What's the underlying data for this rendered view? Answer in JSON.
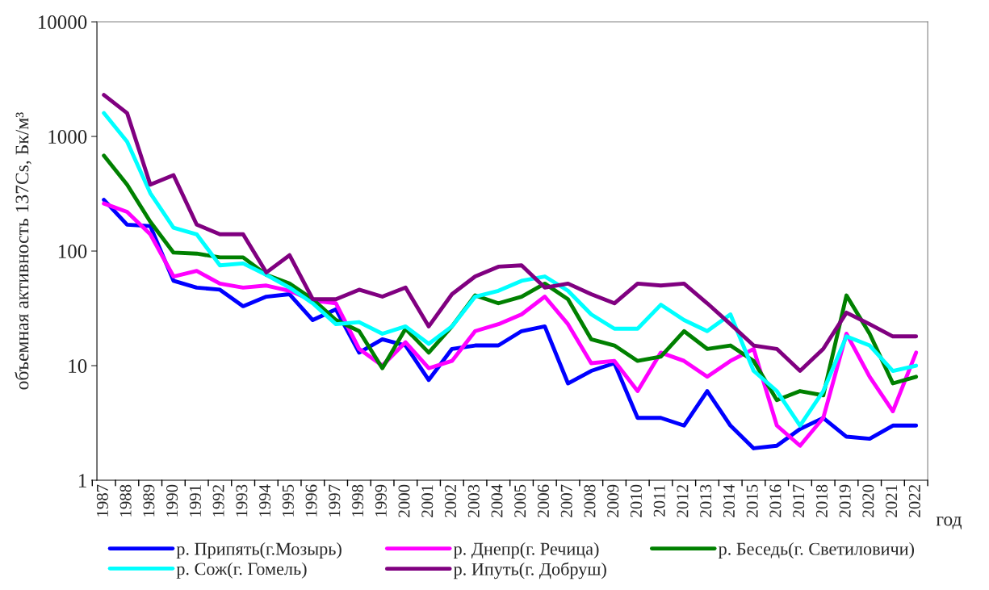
{
  "chart_data": {
    "type": "line",
    "xlabel": "год",
    "ylabel": "объемная активность 137Cs, Бк/м³",
    "categories": [
      "1987",
      "1988",
      "1989",
      "1990",
      "1991",
      "1992",
      "1993",
      "1994",
      "1995",
      "1996",
      "1997",
      "1998",
      "1999",
      "2000",
      "2001",
      "2002",
      "2003",
      "2004",
      "2005",
      "2006",
      "2007",
      "2008",
      "2009",
      "2010",
      "2011",
      "2012",
      "2013",
      "2014",
      "2015",
      "2016",
      "2017",
      "2018",
      "2019",
      "2020",
      "2021",
      "2022"
    ],
    "series": [
      {
        "name": "р. Припять(г.Мозырь)",
        "color": "#0000ff",
        "values": [
          280,
          170,
          165,
          55,
          48,
          46,
          33,
          40,
          42,
          25,
          31,
          13,
          17,
          15,
          7.5,
          14,
          15,
          15,
          20,
          22,
          7,
          9,
          10.5,
          3.5,
          3.5,
          3,
          6,
          3,
          1.9,
          2,
          2.8,
          3.5,
          2.4,
          2.3,
          3,
          3
        ]
      },
      {
        "name": "р. Днепр(г. Речица)",
        "color": "#ff00ff",
        "values": [
          260,
          220,
          140,
          60,
          67,
          52,
          48,
          50,
          45,
          37,
          35,
          14,
          10,
          16,
          9.5,
          11,
          20,
          23,
          28,
          40,
          23,
          10.5,
          11,
          6,
          13,
          11,
          8,
          11,
          14,
          3,
          2,
          3.5,
          19,
          8,
          4,
          13
        ]
      },
      {
        "name": "р. Беседь(г. Светиловичи)",
        "color": "#008000",
        "values": [
          680,
          380,
          180,
          97,
          95,
          88,
          88,
          62,
          52,
          38,
          25,
          20,
          9.5,
          21,
          13,
          22,
          41,
          35,
          40,
          52,
          38,
          17,
          15,
          11,
          12,
          20,
          14,
          15,
          11,
          5,
          6,
          5.5,
          41,
          19,
          7,
          8
        ]
      },
      {
        "name": "р. Сож(г. Гомель)",
        "color": "#00ffff",
        "values": [
          1600,
          900,
          320,
          160,
          140,
          75,
          78,
          62,
          48,
          35,
          23,
          24,
          19,
          22,
          15.5,
          22,
          40,
          45,
          55,
          60,
          45,
          28,
          21,
          21,
          34,
          25,
          20,
          28,
          9,
          6,
          3,
          6,
          18,
          15,
          9,
          10
        ]
      },
      {
        "name": "р. Ипуть(г. Добруш)",
        "color": "#800080",
        "values": [
          2300,
          1600,
          380,
          460,
          170,
          140,
          140,
          65,
          92,
          38,
          38,
          46,
          40,
          48,
          22,
          42,
          60,
          73,
          75,
          48,
          52,
          42,
          35,
          52,
          50,
          52,
          35,
          23,
          15,
          14,
          9,
          14,
          29,
          23,
          18,
          18
        ]
      }
    ],
    "log": "y",
    "ylim": [
      1,
      10000
    ],
    "yticks": [
      1,
      10,
      100,
      1000,
      10000
    ],
    "grid": false,
    "legend": "bottom",
    "line_style": "solid",
    "marker": "none"
  }
}
